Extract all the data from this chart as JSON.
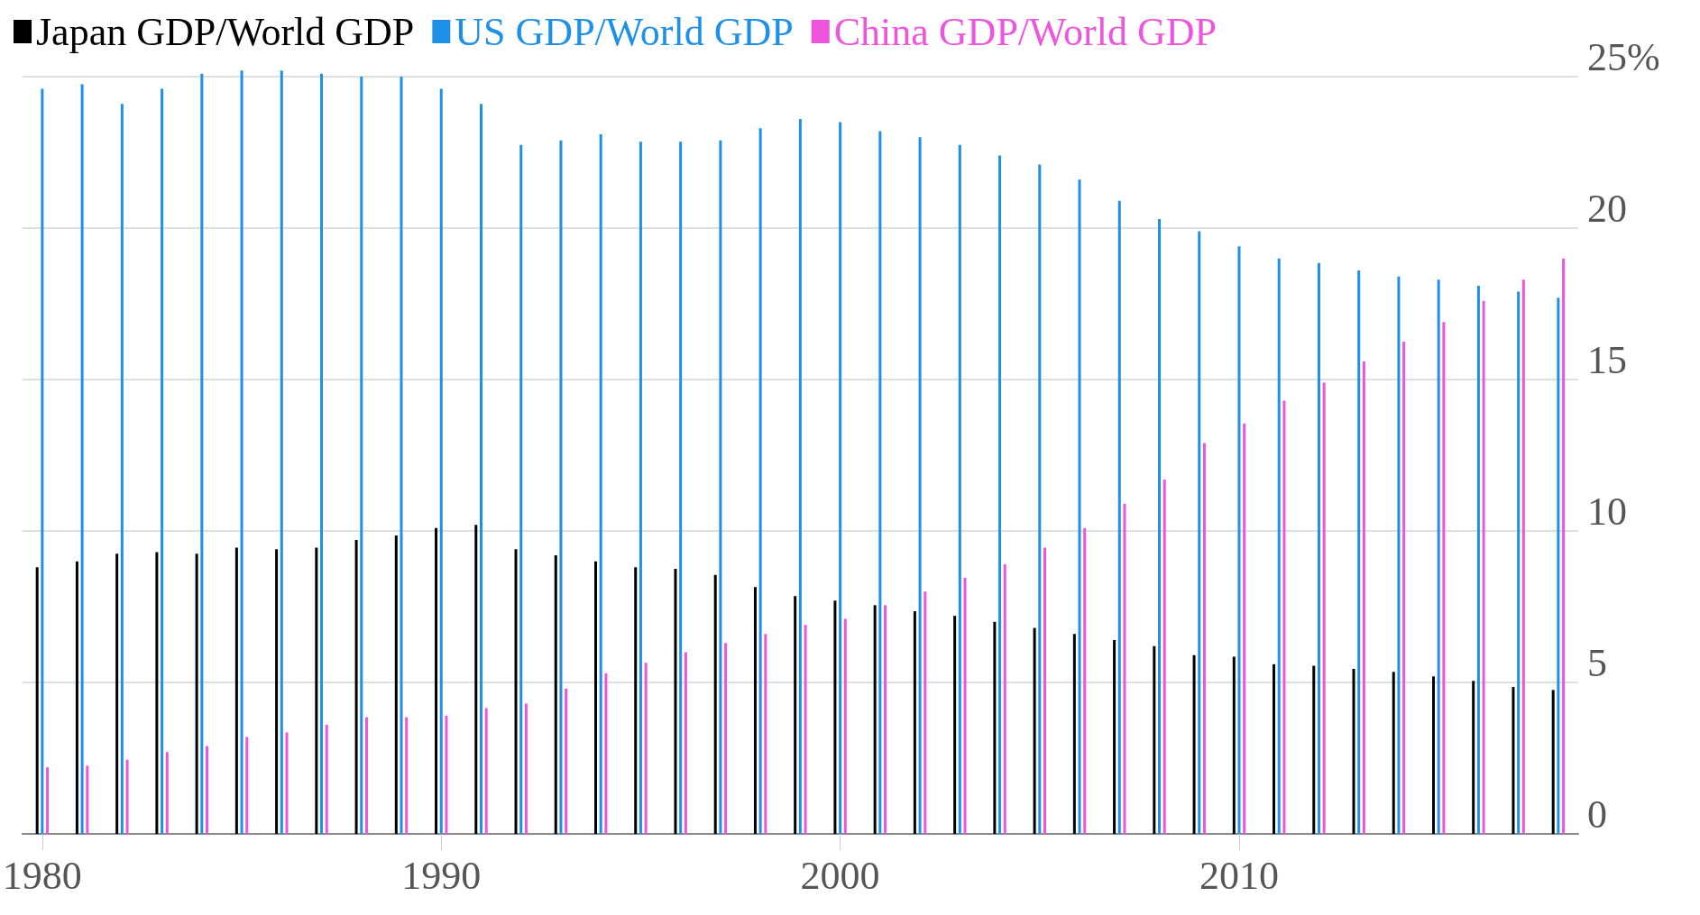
{
  "chart_data": {
    "type": "bar",
    "categories": [
      "1980",
      null,
      null,
      null,
      null,
      null,
      null,
      null,
      null,
      null,
      "1990",
      null,
      null,
      null,
      null,
      null,
      null,
      null,
      null,
      null,
      "2000",
      null,
      null,
      null,
      null,
      null,
      null,
      null,
      null,
      null,
      "2010",
      null,
      null,
      null,
      null,
      null,
      null,
      null,
      null
    ],
    "series": [
      {
        "name": "Japan GDP/World GDP",
        "color": "#000000",
        "values": [
          8.8,
          9.0,
          9.25,
          9.3,
          9.25,
          9.45,
          9.4,
          9.45,
          9.7,
          9.85,
          10.1,
          10.2,
          9.4,
          9.2,
          9.0,
          8.8,
          8.75,
          8.55,
          8.15,
          7.85,
          7.7,
          7.55,
          7.35,
          7.2,
          7.0,
          6.8,
          6.6,
          6.4,
          6.2,
          5.9,
          5.85,
          5.6,
          5.55,
          5.45,
          5.35,
          5.2,
          5.05,
          4.85,
          4.75
        ]
      },
      {
        "name": "US GDP/World GDP",
        "color": "#1e90e8",
        "values": [
          24.6,
          24.75,
          24.1,
          24.6,
          25.1,
          25.2,
          25.2,
          25.1,
          25.0,
          25.0,
          24.6,
          24.1,
          22.75,
          22.9,
          23.1,
          22.85,
          22.85,
          22.9,
          23.3,
          23.6,
          23.5,
          23.2,
          23.0,
          22.75,
          22.4,
          22.1,
          21.6,
          20.9,
          20.3,
          19.9,
          19.4,
          19.0,
          18.85,
          18.6,
          18.4,
          18.3,
          18.1,
          17.9,
          17.7
        ]
      },
      {
        "name": "China GDP/World GDP",
        "color": "#ee55dd",
        "values": [
          2.2,
          2.25,
          2.45,
          2.7,
          2.9,
          3.2,
          3.35,
          3.6,
          3.85,
          3.85,
          3.9,
          4.15,
          4.3,
          4.8,
          5.3,
          5.65,
          6.0,
          6.3,
          6.6,
          6.9,
          7.1,
          7.55,
          8.0,
          8.45,
          8.9,
          9.45,
          10.1,
          10.9,
          11.7,
          12.9,
          13.55,
          14.3,
          14.9,
          15.6,
          16.25,
          16.9,
          17.6,
          18.3,
          19.0
        ]
      }
    ],
    "ylim": [
      0,
      25.3
    ],
    "yticks": [
      0,
      5,
      10,
      15,
      20,
      {
        "value": 25,
        "label": "25%"
      }
    ],
    "grid": "y",
    "legend": "top left"
  }
}
